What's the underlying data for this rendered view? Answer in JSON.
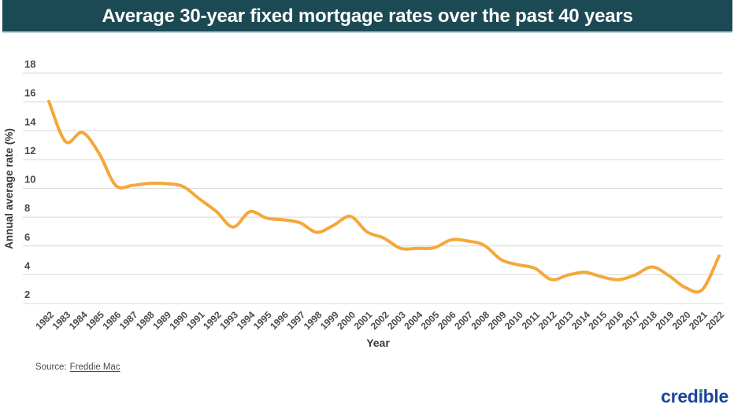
{
  "header": {
    "title": "Average 30-year fixed mortgage rates over the past 40 years"
  },
  "chart_data": {
    "type": "line",
    "title": "Average 30-year fixed mortgage rates over the past 40 years",
    "xlabel": "Year",
    "ylabel": "Annual average rate (%)",
    "x": [
      1982,
      1983,
      1984,
      1985,
      1986,
      1987,
      1988,
      1989,
      1990,
      1991,
      1992,
      1993,
      1994,
      1995,
      1996,
      1997,
      1998,
      1999,
      2000,
      2001,
      2002,
      2003,
      2004,
      2005,
      2006,
      2007,
      2008,
      2009,
      2010,
      2011,
      2012,
      2013,
      2014,
      2015,
      2016,
      2017,
      2018,
      2019,
      2020,
      2021,
      2022
    ],
    "series": [
      {
        "name": "30-year fixed mortgage rate",
        "color": "#F5A73B",
        "values": [
          16.04,
          13.24,
          13.88,
          12.43,
          10.19,
          10.21,
          10.34,
          10.32,
          10.13,
          9.25,
          8.39,
          7.31,
          8.38,
          7.93,
          7.81,
          7.6,
          6.94,
          7.44,
          8.05,
          6.97,
          6.54,
          5.83,
          5.84,
          5.87,
          6.41,
          6.34,
          6.03,
          5.04,
          4.69,
          4.45,
          3.66,
          3.98,
          4.17,
          3.85,
          3.65,
          3.99,
          4.54,
          3.94,
          3.1,
          2.96,
          5.3
        ]
      }
    ],
    "ylim": [
      2,
      18
    ],
    "yticks": [
      2,
      4,
      6,
      8,
      10,
      12,
      14,
      16,
      18
    ],
    "grid": "horizontal",
    "legend_position": "none"
  },
  "source": {
    "label": "Source:",
    "link_text": "Freddie Mac"
  },
  "branding": {
    "name": "credible",
    "wordmark": {
      "before_i": "cred",
      "i_base": "ı",
      "after_i": "ble"
    }
  },
  "colors": {
    "banner_bg": "#1C4A54",
    "banner_border": "#B7D8DC",
    "line": "#F5A73B",
    "gridline": "#D8D8D8",
    "tick_text": "#4A4A4A",
    "axis_title_text": "#3A3A3A",
    "logo_text": "#1B4699",
    "logo_dot": "#2FA066"
  }
}
